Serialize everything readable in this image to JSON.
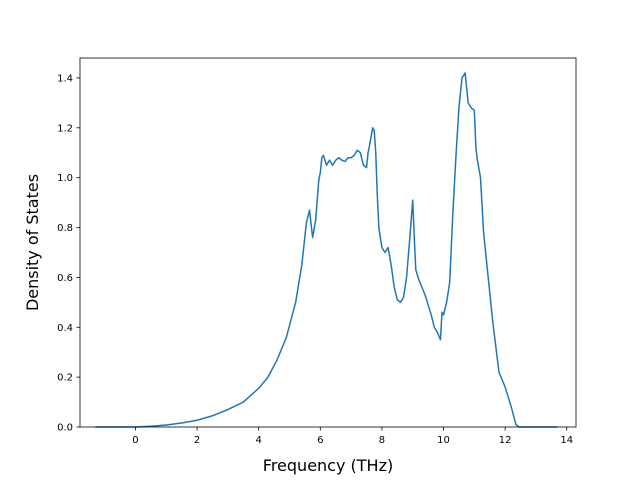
{
  "chart_data": {
    "type": "line",
    "xlabel": "Frequency (THz)",
    "ylabel": "Density of States",
    "xlim": [
      -1.8,
      14.3
    ],
    "ylim": [
      0.0,
      1.48
    ],
    "x_ticks": [
      0,
      2,
      4,
      6,
      8,
      10,
      12,
      14
    ],
    "y_ticks": [
      0.0,
      0.2,
      0.4,
      0.6,
      0.8,
      1.0,
      1.2,
      1.4
    ],
    "x_tick_labels": [
      "0",
      "2",
      "4",
      "6",
      "8",
      "10",
      "12",
      "14"
    ],
    "y_tick_labels": [
      "0.0",
      "0.2",
      "0.4",
      "0.6",
      "0.8",
      "1.0",
      "1.2",
      "1.4"
    ],
    "grid": false,
    "colors": {
      "line": "#1f77b4"
    },
    "series": [
      {
        "x": [
          -1.3,
          0.0,
          0.5,
          1.0,
          1.5,
          2.0,
          2.5,
          3.0,
          3.5,
          4.0,
          4.3,
          4.6,
          4.9,
          5.2,
          5.4,
          5.55,
          5.65,
          5.75,
          5.85,
          5.95,
          6.0,
          6.05,
          6.1,
          6.2,
          6.3,
          6.4,
          6.5,
          6.6,
          6.7,
          6.8,
          6.9,
          7.0,
          7.1,
          7.2,
          7.3,
          7.4,
          7.5,
          7.55,
          7.6,
          7.7,
          7.75,
          7.8,
          7.85,
          7.9,
          8.0,
          8.1,
          8.2,
          8.3,
          8.4,
          8.5,
          8.6,
          8.7,
          8.8,
          8.9,
          9.0,
          9.05,
          9.1,
          9.2,
          9.3,
          9.4,
          9.5,
          9.6,
          9.7,
          9.8,
          9.9,
          9.95,
          10.0,
          10.1,
          10.2,
          10.3,
          10.4,
          10.5,
          10.6,
          10.7,
          10.75,
          10.8,
          10.9,
          11.0,
          11.05,
          11.1,
          11.2,
          11.3,
          11.4,
          11.6,
          11.8,
          12.0,
          12.2,
          12.35,
          12.45,
          12.6,
          13.0,
          13.7
        ],
        "y": [
          0.0,
          0.0,
          0.003,
          0.008,
          0.016,
          0.027,
          0.045,
          0.07,
          0.1,
          0.155,
          0.2,
          0.27,
          0.36,
          0.5,
          0.65,
          0.82,
          0.87,
          0.76,
          0.83,
          0.99,
          1.02,
          1.08,
          1.09,
          1.05,
          1.07,
          1.05,
          1.07,
          1.08,
          1.07,
          1.065,
          1.08,
          1.08,
          1.09,
          1.11,
          1.1,
          1.05,
          1.04,
          1.1,
          1.13,
          1.2,
          1.19,
          1.1,
          0.93,
          0.8,
          0.72,
          0.7,
          0.72,
          0.65,
          0.56,
          0.51,
          0.5,
          0.52,
          0.6,
          0.75,
          0.91,
          0.76,
          0.63,
          0.59,
          0.56,
          0.53,
          0.49,
          0.45,
          0.4,
          0.38,
          0.35,
          0.46,
          0.45,
          0.5,
          0.58,
          0.85,
          1.08,
          1.28,
          1.4,
          1.42,
          1.36,
          1.3,
          1.28,
          1.27,
          1.12,
          1.07,
          1.0,
          0.78,
          0.66,
          0.42,
          0.22,
          0.16,
          0.08,
          0.01,
          0.0,
          0.0,
          0.0,
          0.0
        ]
      }
    ]
  }
}
